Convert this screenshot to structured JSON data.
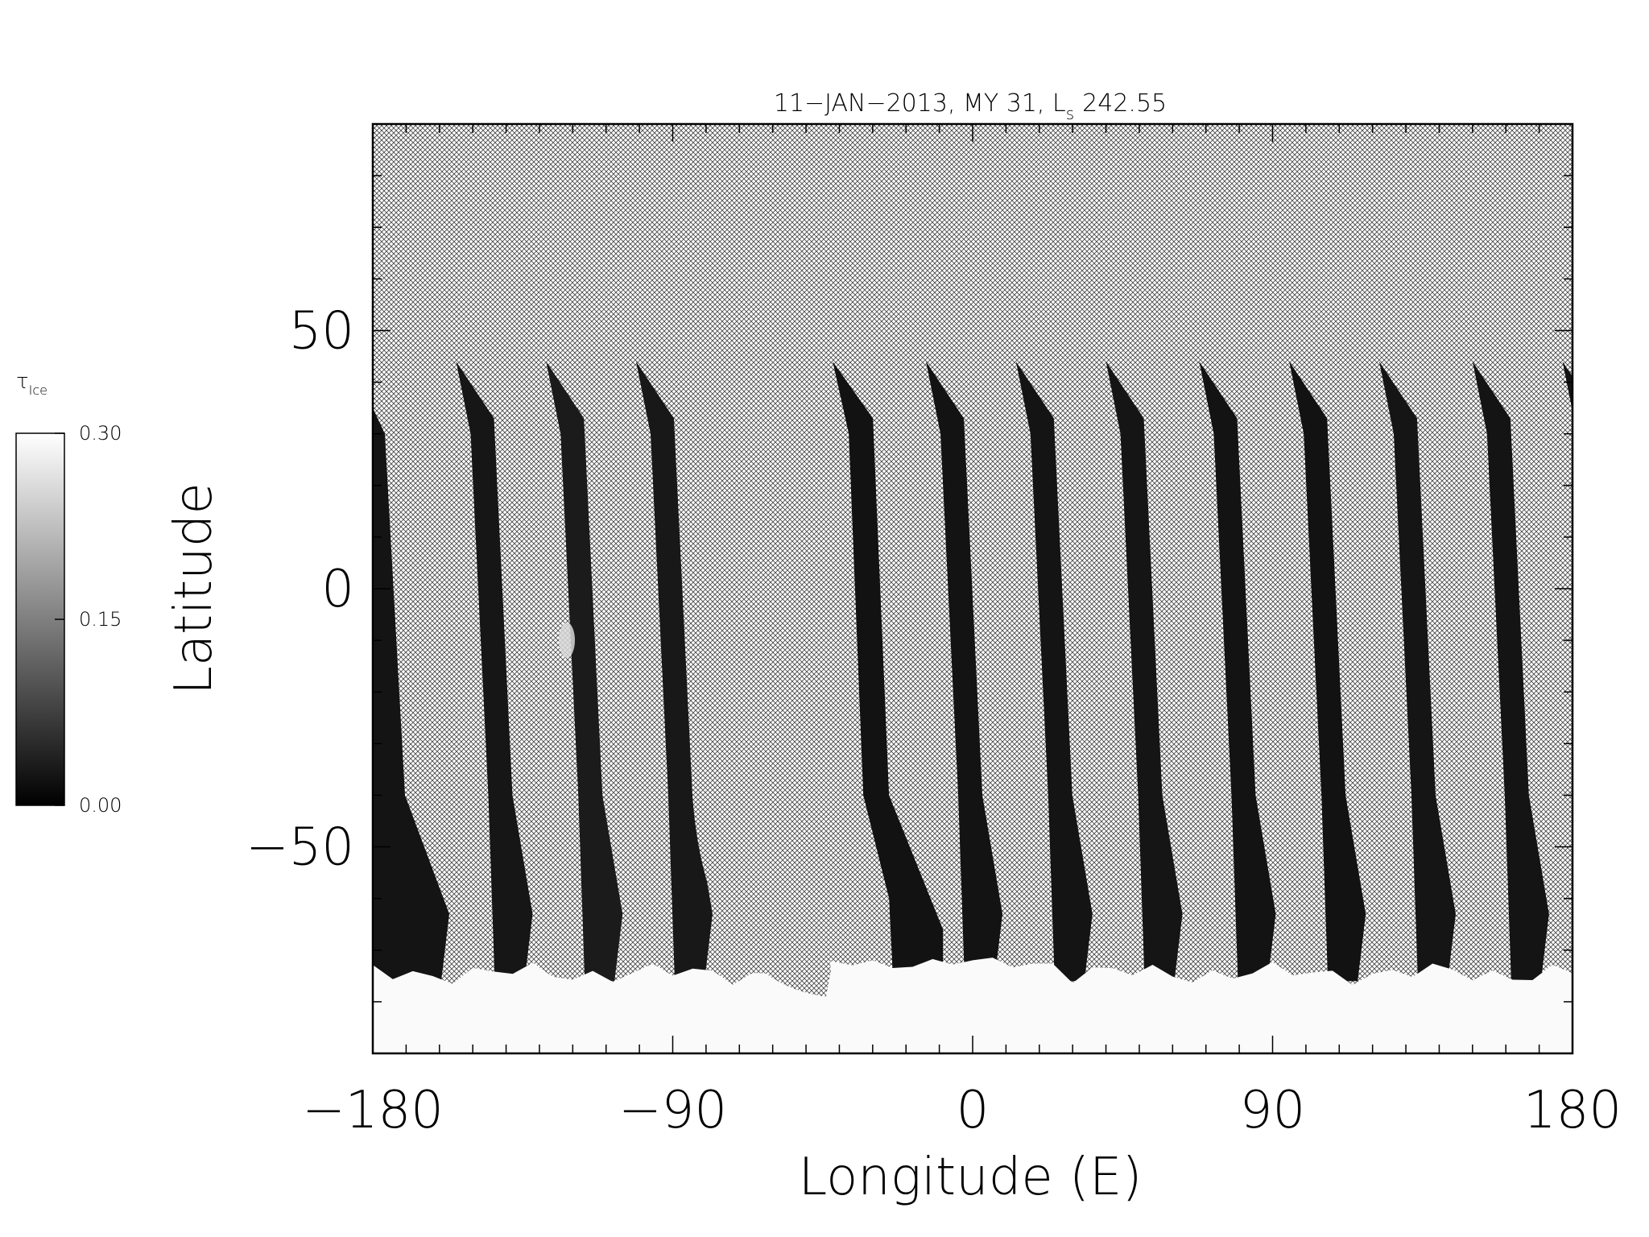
{
  "chart_data": {
    "type": "heatmap",
    "title_main": "11−JAN−2013, MY 31,  L",
    "title_sub": "s",
    "title_value": "242.55",
    "xlabel": "Longitude (E)",
    "ylabel": "Latitude",
    "xlim": [
      -180,
      180
    ],
    "ylim": [
      -90,
      90
    ],
    "x_ticks": [
      -180,
      -90,
      0,
      90,
      180
    ],
    "x_tick_labels": [
      "−180",
      "−90",
      "0",
      "90",
      "180"
    ],
    "y_ticks": [
      -50,
      0,
      50
    ],
    "y_tick_labels": [
      "−50",
      "0",
      "50"
    ],
    "no_data_pattern": "crosshatch",
    "colorbar": {
      "label_symbol": "τ",
      "label_subscript": "Ice",
      "min": 0.0,
      "max": 0.3,
      "ticks": [
        0.0,
        0.15,
        0.3
      ],
      "tick_labels": [
        "0.00",
        "0.15",
        "0.30"
      ]
    },
    "swath_left_edges_lon": [
      -180,
      -155,
      -128,
      -101,
      -42,
      -14,
      13,
      40,
      68,
      95,
      122,
      150,
      177
    ],
    "polar_cap_edge_lat": -74
  }
}
